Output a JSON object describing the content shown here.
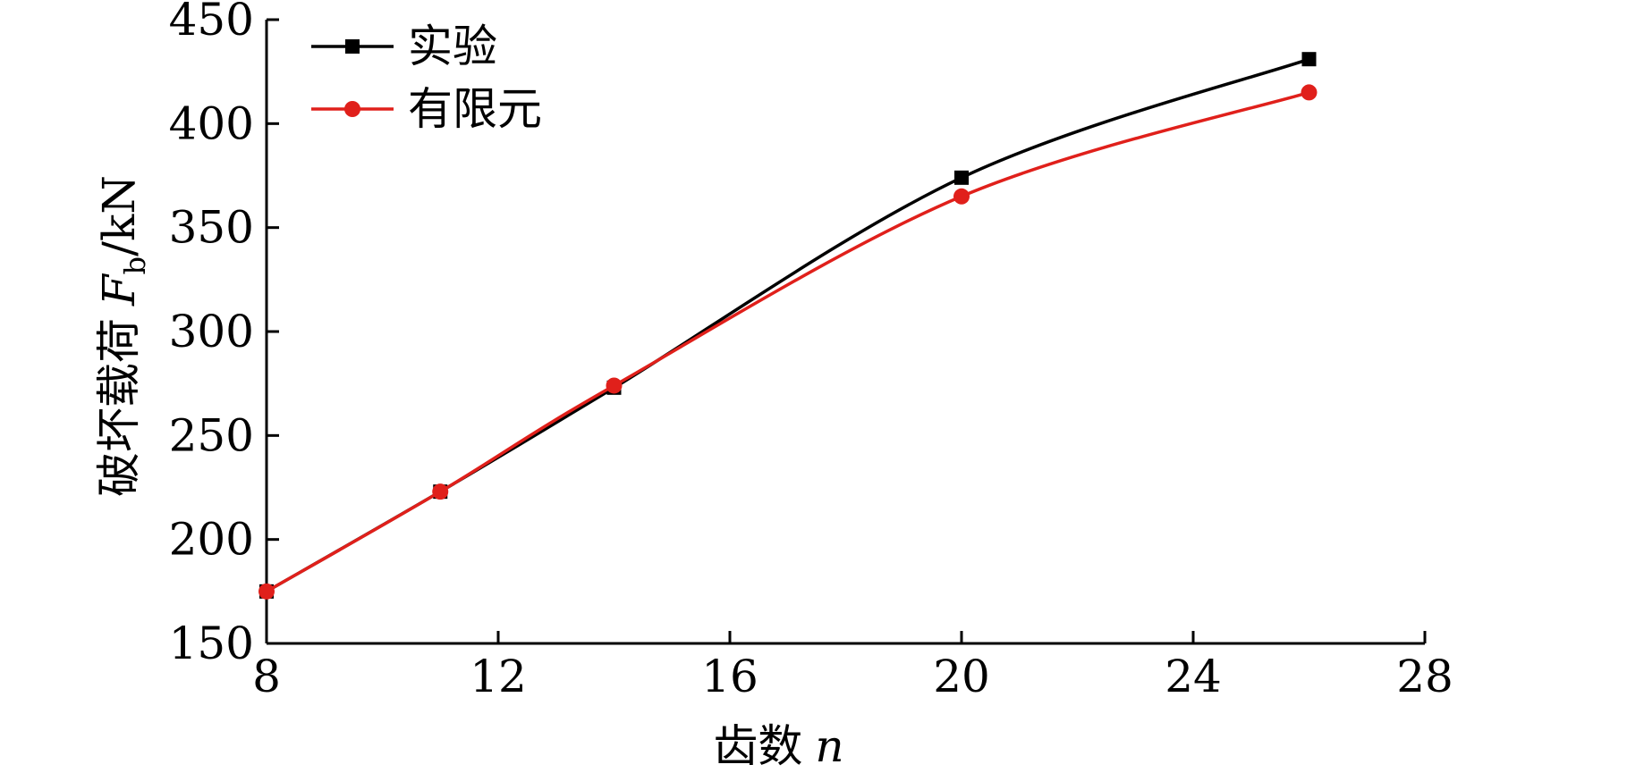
{
  "chart_data": {
    "type": "line",
    "xlabel": "齿数 n",
    "xlabel_parts": {
      "text": "齿数",
      "var": "n"
    },
    "ylabel": "破坏载荷 Fb/kN",
    "ylabel_parts": {
      "text": "破坏载荷",
      "var": "F",
      "sub": "b",
      "unit": "/kN"
    },
    "xlim": [
      8,
      28
    ],
    "ylim": [
      150,
      450
    ],
    "xticks": [
      8,
      12,
      16,
      20,
      24,
      28
    ],
    "yticks": [
      150,
      200,
      250,
      300,
      350,
      400,
      450
    ],
    "grid": false,
    "legend_position": "top-left",
    "series": [
      {
        "name": "实验",
        "color": "#000000",
        "marker": "square",
        "x": [
          8,
          11,
          14,
          20,
          26
        ],
        "values": [
          175,
          223,
          273,
          374,
          431
        ]
      },
      {
        "name": "有限元",
        "color": "#e0201b",
        "marker": "circle",
        "x": [
          8,
          11,
          14,
          20,
          26
        ],
        "values": [
          175,
          223,
          274,
          365,
          415
        ]
      }
    ]
  }
}
